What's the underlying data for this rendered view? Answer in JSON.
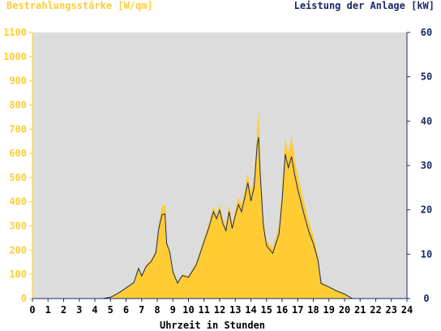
{
  "chart_data": {
    "type": "area",
    "left_axis": {
      "label": "Bestrahlungsstärke [W/qm]",
      "range": [
        0,
        1100
      ],
      "ticks": [
        "0",
        "100",
        "200",
        "300",
        "400",
        "500",
        "600",
        "700",
        "800",
        "900",
        "1000",
        "1100"
      ],
      "color": "#ffcc33"
    },
    "right_axis": {
      "label": "Leistung der Anlage [kW]",
      "range": [
        0,
        60
      ],
      "ticks": [
        "0",
        "10",
        "20",
        "30",
        "40",
        "50",
        "60"
      ],
      "color": "#1a2a66"
    },
    "x_axis": {
      "label": "Uhrzeit in Stunden",
      "range": [
        0,
        24
      ],
      "ticks": [
        "0",
        "1",
        "2",
        "3",
        "4",
        "5",
        "6",
        "7",
        "8",
        "9",
        "10",
        "11",
        "12",
        "13",
        "14",
        "15",
        "16",
        "17",
        "18",
        "19",
        "20",
        "21",
        "22",
        "23",
        "24"
      ]
    },
    "plot_background": "#dcdcdc",
    "series": [
      {
        "name": "Bestrahlungsstärke",
        "axis": "left",
        "style": "filled-area",
        "color": "#ffcc33",
        "points": [
          [
            4.5,
            0
          ],
          [
            5,
            8
          ],
          [
            5.5,
            25
          ],
          [
            6,
            45
          ],
          [
            6.5,
            70
          ],
          [
            6.8,
            130
          ],
          [
            7,
            100
          ],
          [
            7.3,
            140
          ],
          [
            7.6,
            160
          ],
          [
            7.9,
            200
          ],
          [
            8.1,
            310
          ],
          [
            8.3,
            380
          ],
          [
            8.5,
            390
          ],
          [
            8.6,
            240
          ],
          [
            8.8,
            200
          ],
          [
            9.0,
            120
          ],
          [
            9.3,
            70
          ],
          [
            9.6,
            100
          ],
          [
            10,
            95
          ],
          [
            10.5,
            150
          ],
          [
            11,
            250
          ],
          [
            11.3,
            310
          ],
          [
            11.6,
            380
          ],
          [
            11.8,
            350
          ],
          [
            12,
            390
          ],
          [
            12.2,
            330
          ],
          [
            12.4,
            300
          ],
          [
            12.6,
            390
          ],
          [
            12.8,
            310
          ],
          [
            13,
            370
          ],
          [
            13.2,
            420
          ],
          [
            13.4,
            390
          ],
          [
            13.6,
            450
          ],
          [
            13.8,
            520
          ],
          [
            14,
            440
          ],
          [
            14.2,
            500
          ],
          [
            14.4,
            690
          ],
          [
            14.5,
            780
          ],
          [
            14.6,
            560
          ],
          [
            14.8,
            330
          ],
          [
            15,
            240
          ],
          [
            15.4,
            210
          ],
          [
            15.8,
            300
          ],
          [
            16,
            450
          ],
          [
            16.2,
            660
          ],
          [
            16.4,
            600
          ],
          [
            16.6,
            670
          ],
          [
            16.8,
            580
          ],
          [
            17,
            510
          ],
          [
            17.4,
            400
          ],
          [
            17.7,
            320
          ],
          [
            18,
            260
          ],
          [
            18.3,
            180
          ],
          [
            18.5,
            70
          ],
          [
            19,
            50
          ],
          [
            19.5,
            35
          ],
          [
            20,
            20
          ],
          [
            20.5,
            0
          ]
        ]
      },
      {
        "name": "Leistung",
        "axis": "right",
        "style": "line",
        "color": "#1a2a66",
        "points": [
          [
            4.5,
            0
          ],
          [
            5,
            0.3
          ],
          [
            5.5,
            1.2
          ],
          [
            6,
            2.4
          ],
          [
            6.5,
            3.6
          ],
          [
            6.8,
            6.8
          ],
          [
            7,
            5.1
          ],
          [
            7.3,
            7.3
          ],
          [
            7.6,
            8.3
          ],
          [
            7.9,
            10.2
          ],
          [
            8.1,
            15.8
          ],
          [
            8.3,
            18.9
          ],
          [
            8.5,
            19.1
          ],
          [
            8.6,
            12.4
          ],
          [
            8.8,
            10.5
          ],
          [
            9.0,
            6.0
          ],
          [
            9.3,
            3.5
          ],
          [
            9.6,
            5.2
          ],
          [
            10,
            4.8
          ],
          [
            10.5,
            7.6
          ],
          [
            11,
            12.9
          ],
          [
            11.3,
            15.9
          ],
          [
            11.6,
            19.6
          ],
          [
            11.8,
            18.0
          ],
          [
            12,
            19.9
          ],
          [
            12.2,
            16.9
          ],
          [
            12.4,
            15.3
          ],
          [
            12.6,
            19.6
          ],
          [
            12.8,
            15.8
          ],
          [
            13,
            18.7
          ],
          [
            13.2,
            21.2
          ],
          [
            13.4,
            19.6
          ],
          [
            13.6,
            22.6
          ],
          [
            13.8,
            26.1
          ],
          [
            14,
            22.0
          ],
          [
            14.2,
            25.0
          ],
          [
            14.4,
            34.5
          ],
          [
            14.5,
            36.4
          ],
          [
            14.6,
            28.0
          ],
          [
            14.8,
            16.4
          ],
          [
            15,
            11.9
          ],
          [
            15.4,
            10.2
          ],
          [
            15.8,
            14.5
          ],
          [
            16,
            22.1
          ],
          [
            16.2,
            32.5
          ],
          [
            16.4,
            29.5
          ],
          [
            16.6,
            32.0
          ],
          [
            16.8,
            28.0
          ],
          [
            17,
            24.6
          ],
          [
            17.4,
            19.1
          ],
          [
            17.7,
            15.2
          ],
          [
            18,
            12.4
          ],
          [
            18.3,
            8.6
          ],
          [
            18.5,
            3.4
          ],
          [
            19,
            2.6
          ],
          [
            19.5,
            1.7
          ],
          [
            20,
            1.0
          ],
          [
            20.5,
            0
          ]
        ]
      }
    ]
  }
}
